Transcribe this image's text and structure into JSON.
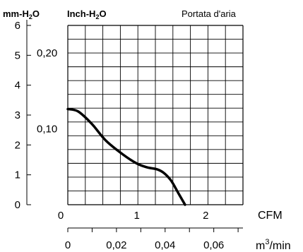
{
  "chart_data": {
    "type": "line",
    "title": "Portata d'aria",
    "y_left": {
      "label_main": "mm-H",
      "label_sub": "2",
      "label_tail": "O",
      "range": [
        0,
        6
      ],
      "ticks": [
        "0",
        "1",
        "2",
        "3",
        "4",
        "5",
        "6"
      ]
    },
    "y_inner": {
      "label_main": "Inch-H",
      "label_sub": "2",
      "label_tail": "O",
      "ticks": [
        {
          "value": 0.1,
          "label": "0,10"
        },
        {
          "value": 0.2,
          "label": "0,20"
        }
      ]
    },
    "x_cfm": {
      "label": "CFM",
      "range": [
        0,
        2.54
      ],
      "ticks": [
        "0",
        "1",
        "2"
      ]
    },
    "x_m3": {
      "label_main": "m",
      "label_sup": "3",
      "label_tail": "/min",
      "range": [
        0,
        0.072
      ],
      "ticks": [
        "0",
        "0,02",
        "0,04",
        "0,06"
      ]
    },
    "grid": true,
    "series": [
      {
        "x_cfm": [
          0,
          0.15,
          0.35,
          0.55,
          0.8,
          1.0,
          1.15,
          1.3,
          1.4,
          1.5,
          1.6,
          1.7
        ],
        "y_mm": [
          3.2,
          3.12,
          2.7,
          2.15,
          1.68,
          1.38,
          1.25,
          1.18,
          1.05,
          0.8,
          0.4,
          0.0
        ]
      }
    ]
  }
}
